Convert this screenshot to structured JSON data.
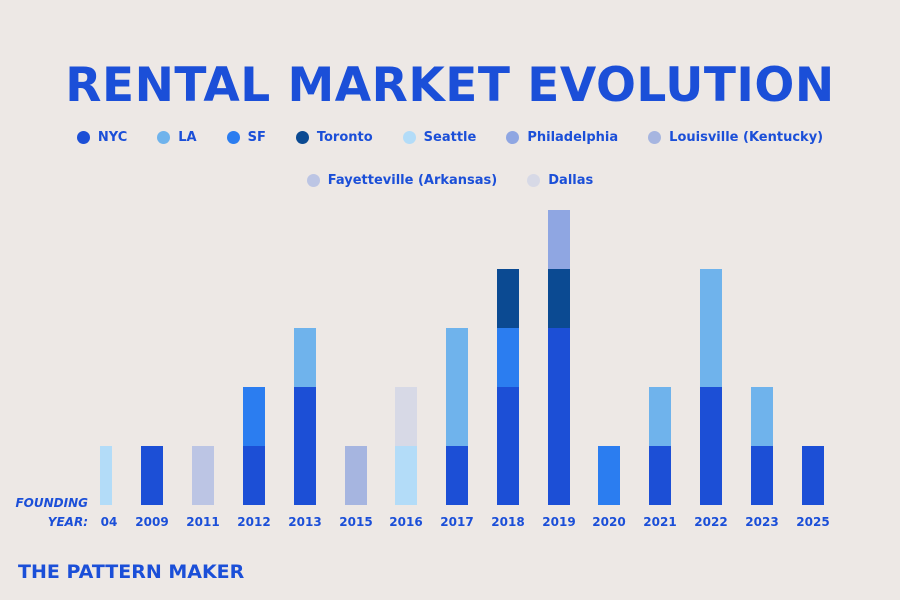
{
  "title": "RENTAL MARKET EVOLUTION",
  "brand": "THE PATTERN MAKER",
  "colors": {
    "background": "#EDE8E5",
    "text": "#1B4FD8"
  },
  "chart_data": {
    "type": "bar",
    "stacked": true,
    "title": "RENTAL MARKET EVOLUTION",
    "xlabel_line1": "FOUNDING",
    "xlabel_line2": "YEAR:",
    "categories": [
      "04",
      "2009",
      "2011",
      "2012",
      "2013",
      "2015",
      "2016",
      "2017",
      "2018",
      "2019",
      "2020",
      "2021",
      "2022",
      "2023",
      "2025"
    ],
    "legend_placement": "top-center",
    "grid": false,
    "ylim": [
      0,
      5
    ],
    "series": [
      {
        "name": "NYC",
        "color": "#1C4FD6",
        "values": [
          0,
          1,
          0,
          1,
          2,
          0,
          0,
          1,
          2,
          3,
          0,
          1,
          2,
          1,
          1
        ]
      },
      {
        "name": "LA",
        "color": "#6FB3EC",
        "values": [
          0,
          0,
          0,
          0,
          1,
          0,
          0,
          2,
          0,
          0,
          0,
          1,
          2,
          1,
          0
        ]
      },
      {
        "name": "SF",
        "color": "#2B7DF0",
        "values": [
          0,
          0,
          0,
          1,
          0,
          0,
          0,
          0,
          1,
          0,
          1,
          0,
          0,
          0,
          0
        ]
      },
      {
        "name": "Toronto",
        "color": "#0B4A92",
        "values": [
          0,
          0,
          0,
          0,
          0,
          0,
          0,
          0,
          1,
          1,
          0,
          0,
          0,
          0,
          0
        ]
      },
      {
        "name": "Seattle",
        "color": "#B3DCF8",
        "values": [
          1,
          0,
          0,
          0,
          0,
          0,
          1,
          0,
          0,
          0,
          0,
          0,
          0,
          0,
          0
        ]
      },
      {
        "name": "Philadelphia",
        "color": "#8FA6E2",
        "values": [
          0,
          0,
          0,
          0,
          0,
          0,
          0,
          0,
          0,
          1,
          0,
          0,
          0,
          0,
          0
        ]
      },
      {
        "name": "Louisville (Kentucky)",
        "color": "#A6B5E0",
        "values": [
          0,
          0,
          0,
          0,
          0,
          1,
          0,
          0,
          0,
          0,
          0,
          0,
          0,
          0,
          0
        ]
      },
      {
        "name": "Fayetteville (Arkansas)",
        "color": "#BCC5E4",
        "values": [
          0,
          0,
          1,
          0,
          0,
          0,
          0,
          0,
          0,
          0,
          0,
          0,
          0,
          0,
          0
        ]
      },
      {
        "name": "Dallas",
        "color": "#D7D9E6",
        "values": [
          0,
          0,
          0,
          0,
          0,
          0,
          1,
          0,
          0,
          0,
          0,
          0,
          0,
          0,
          0
        ]
      }
    ]
  }
}
